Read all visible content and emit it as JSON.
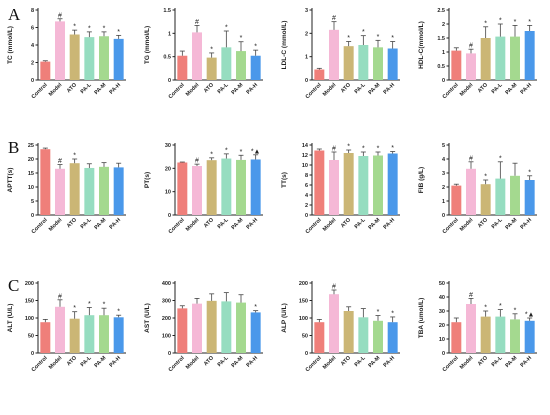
{
  "figure": {
    "rows": [
      {
        "letter": "A"
      },
      {
        "letter": "B"
      },
      {
        "letter": "C"
      }
    ]
  },
  "colors": {
    "Control": "#ef7f7a",
    "Model": "#f5b8d6",
    "ATO": "#cbb675",
    "PA-L": "#96ddc0",
    "PA-M": "#a4d98f",
    "PA-H": "#4a98ea"
  },
  "chart_data": [
    {
      "type": "bar",
      "row": 0,
      "ylabel": "TC (mmol/L)",
      "ylim": [
        0,
        8
      ],
      "yticks": [
        0,
        2,
        4,
        6,
        8
      ],
      "categories": [
        "Control",
        "Model",
        "ATO",
        "PA-L",
        "PA-M",
        "PA-H"
      ],
      "values": [
        2.1,
        6.7,
        5.2,
        4.9,
        5.0,
        4.7
      ],
      "errors": [
        0.1,
        0.3,
        0.5,
        0.6,
        0.5,
        0.4
      ],
      "marks": [
        "",
        "#",
        "*",
        "*",
        "*",
        "*"
      ]
    },
    {
      "type": "bar",
      "row": 0,
      "ylabel": "TG (mmol/L)",
      "ylim": [
        0,
        1.5
      ],
      "yticks": [
        0.0,
        0.5,
        1.0,
        1.5
      ],
      "categories": [
        "Control",
        "Model",
        "ATO",
        "PA-L",
        "PA-M",
        "PA-H"
      ],
      "values": [
        0.52,
        1.02,
        0.48,
        0.7,
        0.62,
        0.52
      ],
      "errors": [
        0.1,
        0.15,
        0.1,
        0.35,
        0.2,
        0.12
      ],
      "marks": [
        "",
        "#",
        "*",
        "*",
        "*",
        "*"
      ]
    },
    {
      "type": "bar",
      "row": 0,
      "ylabel": "LDL-C (mmol/L)",
      "ylim": [
        0,
        3
      ],
      "yticks": [
        0,
        1,
        2,
        3
      ],
      "categories": [
        "Control",
        "Model",
        "ATO",
        "PA-L",
        "PA-M",
        "PA-H"
      ],
      "values": [
        0.45,
        2.15,
        1.45,
        1.5,
        1.4,
        1.35
      ],
      "errors": [
        0.05,
        0.35,
        0.2,
        0.4,
        0.3,
        0.3
      ],
      "marks": [
        "",
        "#",
        "*",
        "*",
        "*",
        "*"
      ]
    },
    {
      "type": "bar",
      "row": 0,
      "ylabel": "HDL-C(mmol/L)",
      "ylim": [
        0,
        2.5
      ],
      "yticks": [
        0.0,
        0.5,
        1.0,
        1.5,
        2.0,
        2.5
      ],
      "categories": [
        "Control",
        "Model",
        "ATO",
        "PA-L",
        "PA-M",
        "PA-H"
      ],
      "values": [
        1.05,
        0.95,
        1.5,
        1.55,
        1.55,
        1.75
      ],
      "errors": [
        0.1,
        0.15,
        0.4,
        0.45,
        0.4,
        0.2
      ],
      "marks": [
        "",
        "#",
        "*",
        "*",
        "*",
        "*"
      ]
    },
    {
      "type": "bar",
      "row": 1,
      "ylabel": "APTT(s)",
      "ylim": [
        0,
        25
      ],
      "yticks": [
        0,
        5,
        10,
        15,
        20,
        25
      ],
      "categories": [
        "Control",
        "Model",
        "ATO",
        "PA-L",
        "PA-M",
        "PA-H"
      ],
      "values": [
        23.5,
        16.5,
        18.5,
        16.8,
        17.2,
        17.0
      ],
      "errors": [
        0.4,
        1.5,
        1.5,
        1.5,
        1.5,
        1.5
      ],
      "marks": [
        "",
        "#",
        "*",
        "",
        "",
        ""
      ]
    },
    {
      "type": "bar",
      "row": 1,
      "ylabel": "PT(s)",
      "ylim": [
        0,
        30
      ],
      "yticks": [
        0,
        10,
        20,
        30
      ],
      "categories": [
        "Control",
        "Model",
        "ATO",
        "PA-L",
        "PA-M",
        "PA-H"
      ],
      "values": [
        22.5,
        21.0,
        23.5,
        24.2,
        23.6,
        23.8
      ],
      "errors": [
        0.2,
        0.8,
        1.0,
        2.0,
        2.0,
        2.0
      ],
      "marks": [
        "",
        "#",
        "*",
        "*",
        "*",
        "*▲"
      ]
    },
    {
      "type": "bar",
      "row": 1,
      "ylabel": "TT(s)",
      "ylim": [
        0,
        14
      ],
      "yticks": [
        0,
        2,
        4,
        6,
        8,
        10,
        12,
        14
      ],
      "categories": [
        "Control",
        "Model",
        "ATO",
        "PA-L",
        "PA-M",
        "PA-H"
      ],
      "values": [
        12.9,
        11.0,
        12.4,
        11.8,
        11.9,
        12.3
      ],
      "errors": [
        0.3,
        1.6,
        0.6,
        0.8,
        0.7,
        0.4
      ],
      "marks": [
        "",
        "#",
        "*",
        "*",
        "*",
        "*"
      ]
    },
    {
      "type": "bar",
      "row": 1,
      "ylabel": "FIB (g/L)",
      "ylim": [
        0,
        5
      ],
      "yticks": [
        0,
        1,
        2,
        3,
        4,
        5
      ],
      "categories": [
        "Control",
        "Model",
        "ATO",
        "PA-L",
        "PA-M",
        "PA-H"
      ],
      "values": [
        2.1,
        3.3,
        2.2,
        2.6,
        2.8,
        2.5
      ],
      "errors": [
        0.1,
        0.5,
        0.3,
        1.2,
        0.9,
        0.3
      ],
      "marks": [
        "",
        "#",
        "*",
        "*",
        "",
        "*"
      ]
    },
    {
      "type": "bar",
      "row": 2,
      "ylabel": "ALT (U/L)",
      "ylim": [
        0,
        200
      ],
      "yticks": [
        0,
        50,
        100,
        150,
        200
      ],
      "categories": [
        "Control",
        "Model",
        "ATO",
        "PA-L",
        "PA-M",
        "PA-H"
      ],
      "values": [
        88,
        132,
        98,
        108,
        108,
        102
      ],
      "errors": [
        8,
        20,
        20,
        22,
        20,
        6
      ],
      "marks": [
        "",
        "#",
        "*",
        "*",
        "*",
        "*"
      ]
    },
    {
      "type": "bar",
      "row": 2,
      "ylabel": "AST (U/L)",
      "ylim": [
        0,
        400
      ],
      "yticks": [
        0,
        100,
        200,
        300,
        400
      ],
      "categories": [
        "Control",
        "Model",
        "ATO",
        "PA-L",
        "PA-M",
        "PA-H"
      ],
      "values": [
        255,
        282,
        298,
        295,
        288,
        232
      ],
      "errors": [
        15,
        30,
        40,
        50,
        45,
        10
      ],
      "marks": [
        "",
        "",
        "",
        "",
        "",
        "*"
      ]
    },
    {
      "type": "bar",
      "row": 2,
      "ylabel": "ALP (U/L)",
      "ylim": [
        0,
        200
      ],
      "yticks": [
        0,
        50,
        100,
        150,
        200
      ],
      "categories": [
        "Control",
        "Model",
        "ATO",
        "PA-L",
        "PA-M",
        "PA-H"
      ],
      "values": [
        88,
        168,
        120,
        102,
        92,
        88
      ],
      "errors": [
        8,
        12,
        12,
        25,
        15,
        15
      ],
      "marks": [
        "",
        "#",
        "",
        "",
        "*",
        "*"
      ]
    },
    {
      "type": "bar",
      "row": 2,
      "ylabel": "TBA (umol/L)",
      "ylim": [
        0,
        50
      ],
      "yticks": [
        0,
        10,
        20,
        30,
        40,
        50
      ],
      "categories": [
        "Control",
        "Model",
        "ATO",
        "PA-L",
        "PA-M",
        "PA-H"
      ],
      "values": [
        22,
        35,
        26,
        26,
        24,
        23
      ],
      "errors": [
        3,
        4,
        4,
        5,
        4,
        2
      ],
      "marks": [
        "",
        "#",
        "*",
        "*",
        "*",
        "*▲"
      ]
    }
  ]
}
